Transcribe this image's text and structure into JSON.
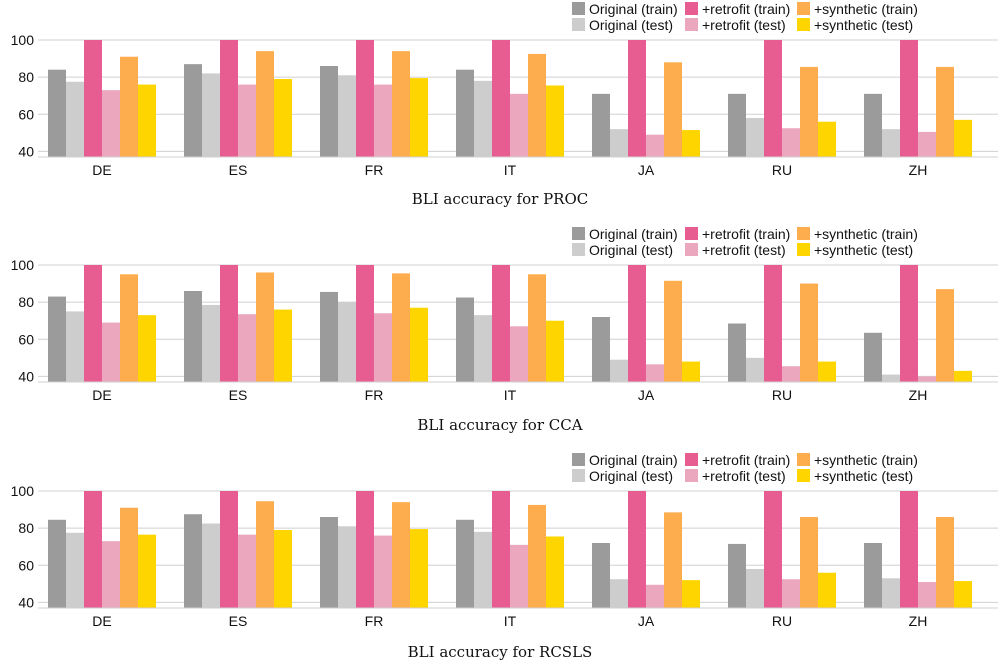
{
  "colors": {
    "orig_train": "#9b9b9b",
    "orig_test": "#cdcdcd",
    "retro_train": "#e85d91",
    "retro_test": "#eba7be",
    "syn_train": "#fdac4e",
    "syn_test": "#ffd500",
    "grid": "#d0d0d0"
  },
  "captions": [
    {
      "prefix": "BLI accuracy for ",
      "method": "PROC"
    },
    {
      "prefix": "BLI accuracy for ",
      "method": "CCA"
    },
    {
      "prefix": "BLI accuracy for ",
      "method": "RCSLS"
    }
  ],
  "chart_data": [
    {
      "type": "bar",
      "categories": [
        "DE",
        "ES",
        "FR",
        "IT",
        "JA",
        "RU",
        "ZH"
      ],
      "ylim": [
        37,
        100
      ],
      "yticks": [
        40,
        60,
        80,
        100
      ],
      "grid": true,
      "legend": "top-right",
      "series": [
        {
          "name": "Original (train)",
          "color_key": "orig_train",
          "values": [
            84,
            87,
            86,
            84,
            71,
            71,
            71
          ]
        },
        {
          "name": "Original (test)",
          "color_key": "orig_test",
          "values": [
            77.5,
            82,
            81,
            78,
            52,
            58,
            52
          ]
        },
        {
          "name": "+retrofit (train)",
          "color_key": "retro_train",
          "values": [
            100,
            100,
            100,
            100,
            100,
            100,
            100
          ]
        },
        {
          "name": "+retrofit (test)",
          "color_key": "retro_test",
          "values": [
            73,
            76,
            76,
            71,
            49,
            52.5,
            50.5
          ]
        },
        {
          "name": "+synthetic (train)",
          "color_key": "syn_train",
          "values": [
            91,
            94,
            94,
            92.5,
            88,
            85.5,
            85.5
          ]
        },
        {
          "name": "+synthetic (test)",
          "color_key": "syn_test",
          "values": [
            76,
            79,
            79.5,
            75.5,
            51.5,
            56,
            57
          ]
        }
      ]
    },
    {
      "type": "bar",
      "categories": [
        "DE",
        "ES",
        "FR",
        "IT",
        "JA",
        "RU",
        "ZH"
      ],
      "ylim": [
        37,
        100
      ],
      "yticks": [
        40,
        60,
        80,
        100
      ],
      "grid": true,
      "legend": "top-right",
      "series": [
        {
          "name": "Original (train)",
          "color_key": "orig_train",
          "values": [
            83,
            86,
            85.5,
            82.5,
            72,
            68.5,
            63.5
          ]
        },
        {
          "name": "Original (test)",
          "color_key": "orig_test",
          "values": [
            75,
            78.5,
            80,
            73,
            49,
            50,
            41
          ]
        },
        {
          "name": "+retrofit (train)",
          "color_key": "retro_train",
          "values": [
            100,
            100,
            100,
            100,
            100,
            100,
            100
          ]
        },
        {
          "name": "+retrofit (test)",
          "color_key": "retro_test",
          "values": [
            69,
            73.5,
            74,
            67,
            46.5,
            45.5,
            40
          ]
        },
        {
          "name": "+synthetic (train)",
          "color_key": "syn_train",
          "values": [
            95,
            96,
            95.5,
            95,
            91.5,
            90,
            87
          ]
        },
        {
          "name": "+synthetic (test)",
          "color_key": "syn_test",
          "values": [
            73,
            76,
            77,
            70,
            48,
            48,
            43
          ]
        }
      ]
    },
    {
      "type": "bar",
      "categories": [
        "DE",
        "ES",
        "FR",
        "IT",
        "JA",
        "RU",
        "ZH"
      ],
      "ylim": [
        37,
        100
      ],
      "yticks": [
        40,
        60,
        80,
        100
      ],
      "grid": true,
      "legend": "top-right",
      "series": [
        {
          "name": "Original (train)",
          "color_key": "orig_train",
          "values": [
            84.5,
            87.5,
            86,
            84.5,
            72,
            71.5,
            72
          ]
        },
        {
          "name": "Original (test)",
          "color_key": "orig_test",
          "values": [
            77.5,
            82.5,
            81,
            78,
            52.5,
            58,
            53
          ]
        },
        {
          "name": "+retrofit (train)",
          "color_key": "retro_train",
          "values": [
            100,
            100,
            100,
            100,
            100,
            100,
            100
          ]
        },
        {
          "name": "+retrofit (test)",
          "color_key": "retro_test",
          "values": [
            73,
            76.5,
            76,
            71,
            49.5,
            52.5,
            51
          ]
        },
        {
          "name": "+synthetic (train)",
          "color_key": "syn_train",
          "values": [
            91,
            94.5,
            94,
            92.5,
            88.5,
            86,
            86
          ]
        },
        {
          "name": "+synthetic (test)",
          "color_key": "syn_test",
          "values": [
            76.5,
            79,
            79.5,
            75.5,
            52,
            56,
            51.5
          ]
        }
      ]
    }
  ]
}
